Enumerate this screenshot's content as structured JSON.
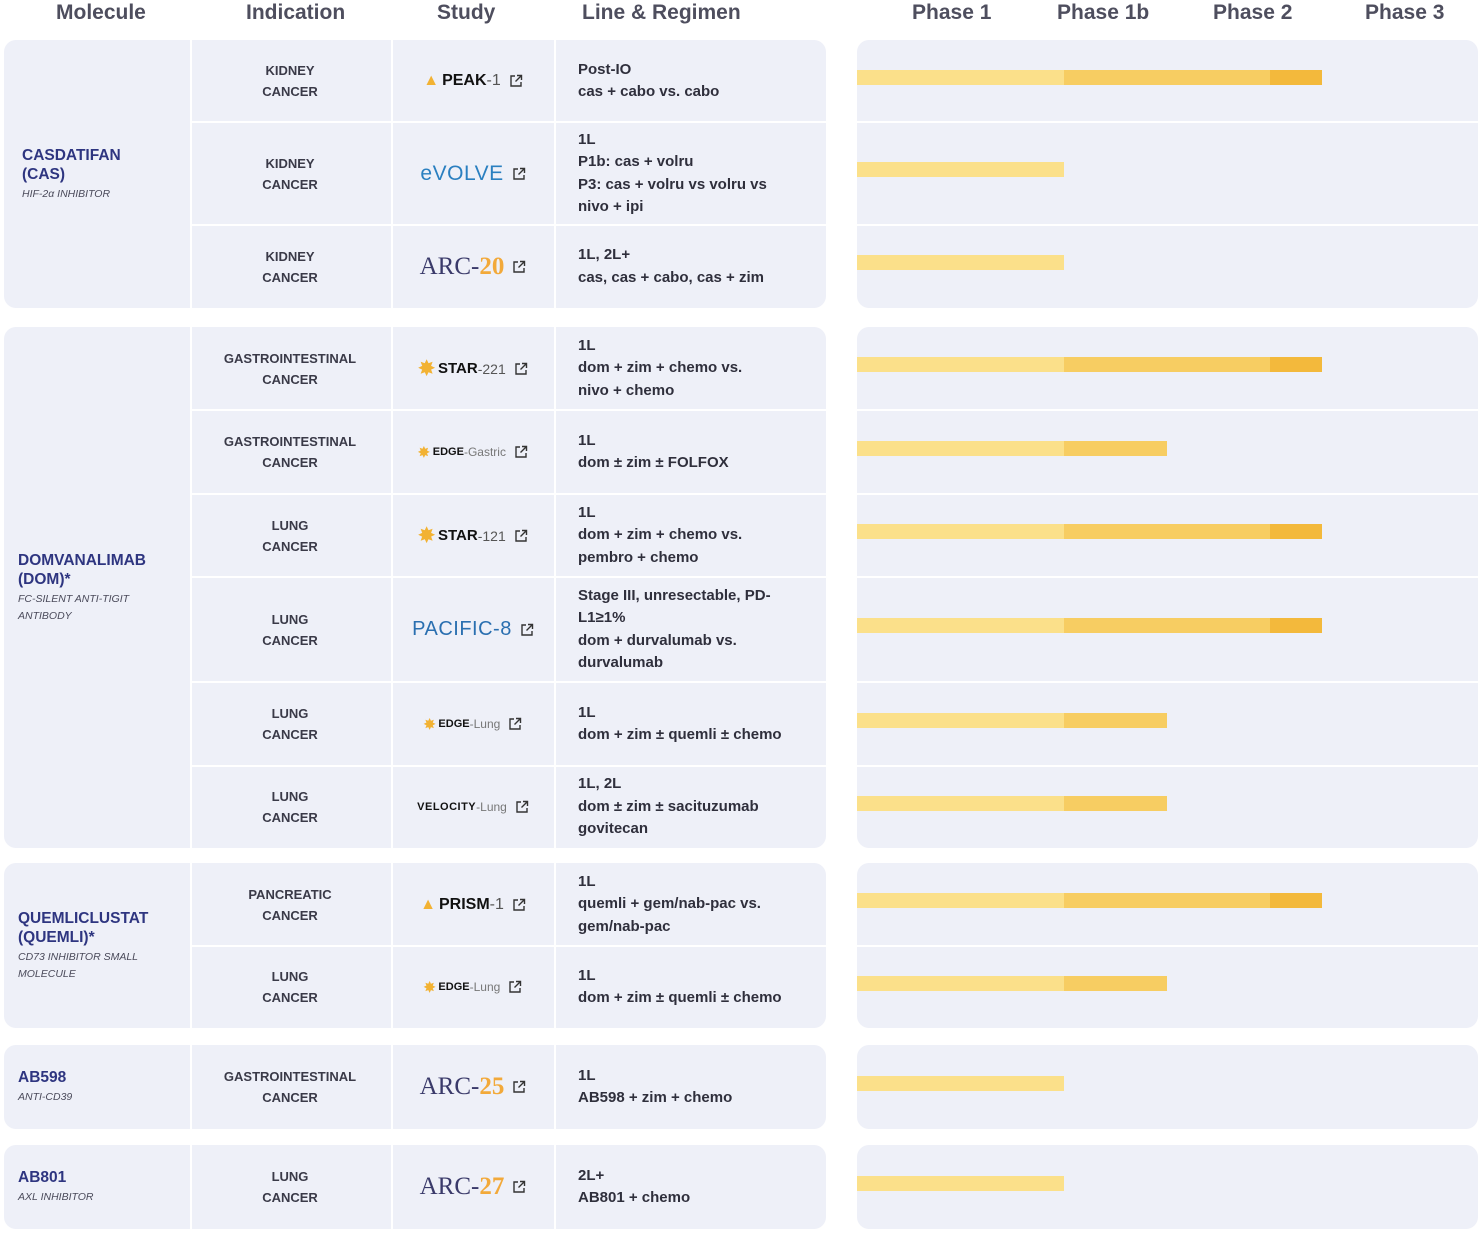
{
  "headers": {
    "molecule": "Molecule",
    "indication": "Indication",
    "study": "Study",
    "line": "Line & Regimen",
    "phase1": "Phase 1",
    "phase1b": "Phase 1b",
    "phase2": "Phase 2",
    "phase3": "Phase 3"
  },
  "groups": [
    {
      "name_lines": [
        "CASDATIFAN",
        "(CAS)"
      ],
      "sub_lines": [
        "HIF-2α INHIBITOR"
      ],
      "rows": [
        {
          "indication": [
            "KIDNEY",
            "CANCER"
          ],
          "study": "PEAK-1",
          "logo": "peak",
          "line": [
            "Post-IO",
            "cas + cabo vs. cabo"
          ]
        },
        {
          "indication": [
            "KIDNEY",
            "CANCER"
          ],
          "study": "eVOLVE",
          "logo": "evolve",
          "line": [
            "1L",
            "P1b: cas + volru",
            "P3: cas + volru vs volru vs",
            "nivo + ipi"
          ]
        },
        {
          "indication": [
            "KIDNEY",
            "CANCER"
          ],
          "study": "ARC-20",
          "logo": "arc",
          "line": [
            "1L, 2L+",
            "cas, cas + cabo, cas + zim"
          ]
        }
      ]
    },
    {
      "name_lines": [
        "DOMVANALIMAB",
        "(DOM)*"
      ],
      "sub_lines": [
        "FC-SILENT ANTI-TIGIT",
        "ANTIBODY"
      ],
      "rows": [
        {
          "indication": [
            "GASTROINTESTINAL",
            "CANCER"
          ],
          "study": "STAR-221",
          "logo": "star",
          "line": [
            "1L",
            "dom + zim + chemo vs.",
            "nivo + chemo"
          ]
        },
        {
          "indication": [
            "GASTROINTESTINAL",
            "CANCER"
          ],
          "study": "EDGE-Gastric",
          "logo": "edge",
          "line": [
            "1L",
            "dom ± zim ± FOLFOX"
          ]
        },
        {
          "indication": [
            "LUNG",
            "CANCER"
          ],
          "study": "STAR-121",
          "logo": "star",
          "line": [
            "1L",
            "dom + zim + chemo vs.",
            "pembro + chemo"
          ]
        },
        {
          "indication": [
            "LUNG",
            "CANCER"
          ],
          "study": "PACIFIC-8",
          "logo": "pacific",
          "line": [
            "Stage III, unresectable, PD-",
            "L1≥1%",
            "dom + durvalumab vs.",
            "durvalumab"
          ]
        },
        {
          "indication": [
            "LUNG",
            "CANCER"
          ],
          "study": "EDGE-Lung",
          "logo": "edge",
          "line": [
            "1L",
            "dom + zim ± quemli ± chemo"
          ]
        },
        {
          "indication": [
            "LUNG",
            "CANCER"
          ],
          "study": "VELOCITY-Lung",
          "logo": "velocity",
          "line": [
            "1L, 2L",
            "dom ± zim ± sacituzumab",
            "govitecan"
          ]
        }
      ]
    },
    {
      "name_lines": [
        "QUEMLICLUSTAT",
        "(QUEMLI)*"
      ],
      "sub_lines": [
        "CD73 INHIBITOR SMALL",
        "MOLECULE"
      ],
      "rows": [
        {
          "indication": [
            "PANCREATIC",
            "CANCER"
          ],
          "study": "PRISM-1",
          "logo": "peak",
          "line": [
            "1L",
            "quemli + gem/nab-pac vs.",
            "gem/nab-pac"
          ]
        },
        {
          "indication": [
            "LUNG",
            "CANCER"
          ],
          "study": "EDGE-Lung",
          "logo": "edge",
          "line": [
            "1L",
            "dom + zim ± quemli ± chemo"
          ]
        }
      ]
    },
    {
      "name_lines": [
        "AB598"
      ],
      "sub_lines": [
        "ANTI-CD39"
      ],
      "rows": [
        {
          "indication": [
            "GASTROINTESTINAL",
            "CANCER"
          ],
          "study": "ARC-25",
          "logo": "arc",
          "line": [
            "1L",
            "AB598 + zim + chemo"
          ]
        }
      ]
    },
    {
      "name_lines": [
        "AB801"
      ],
      "sub_lines": [
        "AXL INHIBITOR"
      ],
      "rows": [
        {
          "indication": [
            "LUNG",
            "CANCER"
          ],
          "study": "ARC-27",
          "logo": "arc",
          "line": [
            "2L+",
            "AB801 + chemo"
          ]
        }
      ]
    }
  ],
  "chart_data": {
    "type": "bar",
    "orientation": "horizontal",
    "stacked_phases": true,
    "categories": [
      "Phase 1",
      "Phase 1b",
      "Phase 2",
      "Phase 3"
    ],
    "colors": {
      "phase1": "#fbe08a",
      "phase1b": "#f7cd62",
      "phase2": "#f3b93c",
      "phase3": "#f3b93c"
    },
    "progress_phase_units": [
      2.5,
      1.0,
      1.0,
      2.5,
      1.5,
      2.5,
      2.5,
      1.5,
      1.5,
      2.5,
      1.5,
      1.0,
      1.0
    ],
    "rows": [
      "PEAK-1",
      "eVOLVE",
      "ARC-20",
      "STAR-221",
      "EDGE-Gastric",
      "STAR-121",
      "PACIFIC-8",
      "EDGE-Lung",
      "VELOCITY-Lung",
      "PRISM-1",
      "EDGE-Lung",
      "ARC-25",
      "ARC-27"
    ]
  }
}
